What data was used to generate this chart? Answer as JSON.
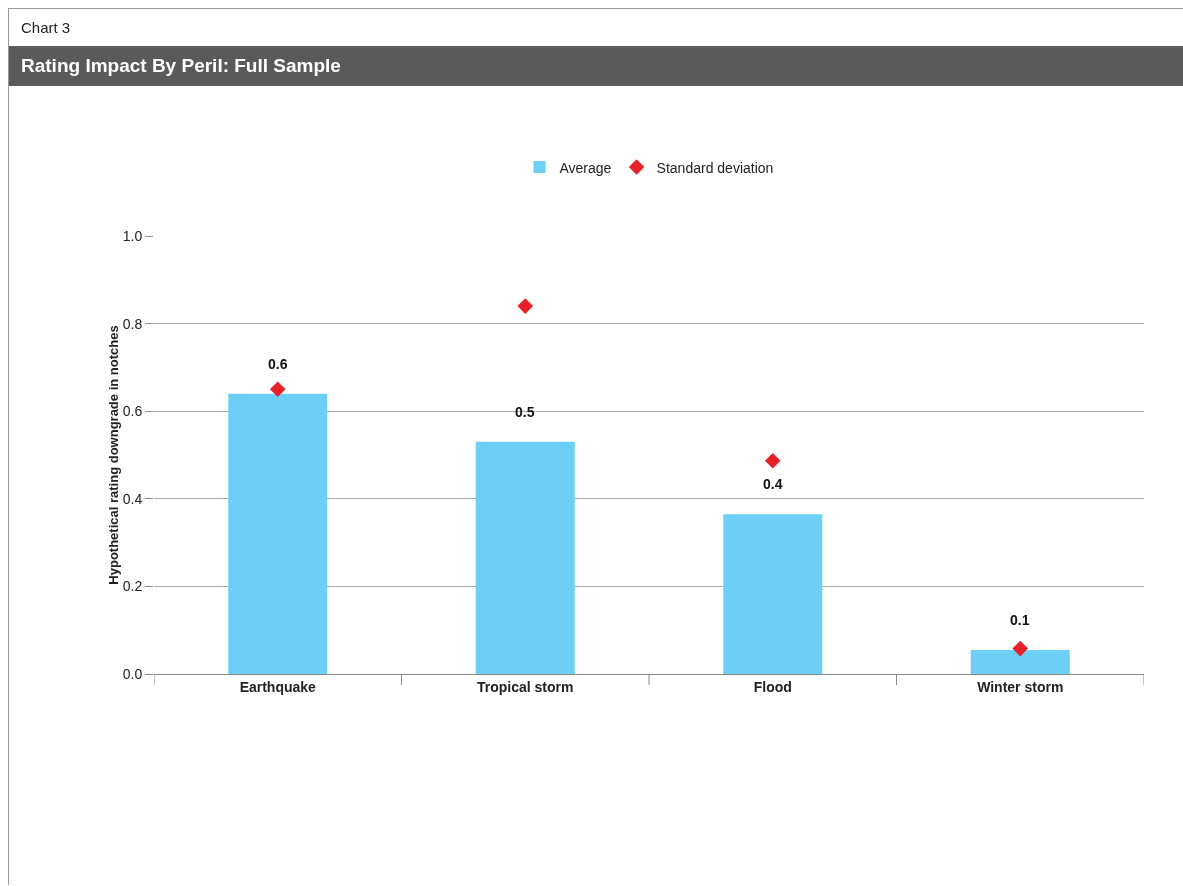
{
  "chart_data": {
    "type": "bar",
    "title": "Rating Impact By Peril: Full Sample",
    "annotations": [
      "Chart 3"
    ],
    "ylabel": "Hypothetical rating downgrade in notches",
    "categories": [
      "Earthquake",
      "Tropical storm",
      "Flood",
      "Winter storm"
    ],
    "series": [
      {
        "name": "Average",
        "color": "#6dcff6",
        "values": [
          0.64,
          0.53,
          0.365,
          0.055
        ],
        "value_labels": [
          "0.6",
          "0.5",
          "0.4",
          "0.1"
        ]
      },
      {
        "name": "Standard deviation",
        "type": "scatter",
        "color": "#e8202a",
        "marker": "diamond",
        "x": [
          "Earthquake",
          "Tropical storm",
          "Flood",
          "Winter storm"
        ],
        "values": [
          0.65,
          0.84,
          0.487,
          0.058
        ]
      }
    ],
    "ylim": [
      0,
      1
    ],
    "yticks": [
      {
        "value": 0,
        "label": "0.0"
      },
      {
        "value": 0.2,
        "label": "0.2"
      },
      {
        "value": 0.4,
        "label": "0.4"
      },
      {
        "value": 0.6,
        "label": "0.6"
      },
      {
        "value": 0.8,
        "label": "0.8"
      },
      {
        "value": 1,
        "label": "1.0"
      }
    ],
    "grid": "y",
    "legend": "top"
  }
}
